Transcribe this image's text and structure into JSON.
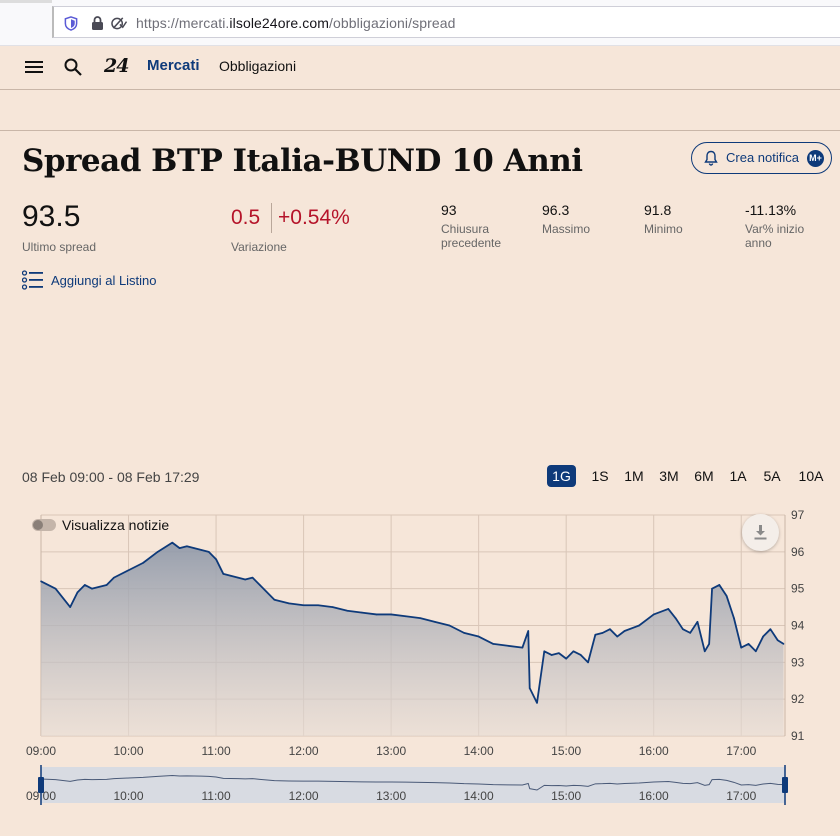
{
  "browser": {
    "url_prefix": "https://mercati.",
    "url_domain": "ilsole24ore.com",
    "url_path": "/obbligazioni/spread"
  },
  "nav": {
    "logo": "24",
    "mercati": "Mercati",
    "obbligazioni": "Obbligazioni"
  },
  "header": {
    "title": "Spread BTP Italia-BUND 10 Anni",
    "notify_label": "Crea notifica",
    "notify_badge": "M+"
  },
  "quote": {
    "last": "93.5",
    "last_label": "Ultimo spread",
    "change": "0.5",
    "change_pct": "+0.54%",
    "change_label": "Variazione",
    "prev_close": "93",
    "prev_close_label_1": "Chiusura",
    "prev_close_label_2": "precedente",
    "high": "96.3",
    "high_label": "Massimo",
    "low": "91.8",
    "low_label": "Minimo",
    "ytd": "-11.13%",
    "ytd_label_1": "Var% inizio",
    "ytd_label_2": "anno"
  },
  "watchlist_label": "Aggiungi al Listino",
  "chart_controls": {
    "range_text": "08 Feb 09:00 - 08 Feb 17:29",
    "periods": [
      "1G",
      "1S",
      "1M",
      "3M",
      "6M",
      "1A",
      "5A",
      "10A"
    ],
    "active_period": "1G",
    "news_toggle_label": "Visualizza notizie",
    "news_toggle_on": false
  },
  "colors": {
    "background": "#f6e6d9",
    "accent": "#0e3a7a",
    "negative": "#b5142a",
    "line": "#0e3a7a"
  },
  "chart_data": {
    "type": "area",
    "title": "",
    "xlabel": "",
    "ylabel": "",
    "xlim": [
      "09:00",
      "17:30"
    ],
    "ylim": [
      91,
      97
    ],
    "x_ticks": [
      "09:00",
      "10:00",
      "11:00",
      "12:00",
      "13:00",
      "14:00",
      "15:00",
      "16:00",
      "17:00"
    ],
    "y_ticks": [
      91,
      92,
      93,
      94,
      95,
      96,
      97
    ],
    "y_axis_side": "right",
    "grid": true,
    "series": [
      {
        "x": [
          "09:00",
          "09:10",
          "09:20",
          "09:25",
          "09:30",
          "09:35",
          "09:45",
          "09:50",
          "10:00",
          "10:10",
          "10:20",
          "10:30",
          "10:35",
          "10:40",
          "10:45",
          "10:50",
          "10:55",
          "11:00",
          "11:05",
          "11:10",
          "11:15",
          "11:20",
          "11:25",
          "11:30",
          "11:40",
          "11:50",
          "12:00",
          "12:10",
          "12:20",
          "12:30",
          "12:40",
          "12:50",
          "13:00",
          "13:10",
          "13:20",
          "13:30",
          "13:40",
          "13:50",
          "14:00",
          "14:10",
          "14:20",
          "14:30",
          "14:34",
          "14:35",
          "14:40",
          "14:45",
          "14:50",
          "14:55",
          "15:00",
          "15:05",
          "15:10",
          "15:15",
          "15:20",
          "15:25",
          "15:30",
          "15:35",
          "15:40",
          "15:50",
          "16:00",
          "16:10",
          "16:15",
          "16:20",
          "16:25",
          "16:30",
          "16:35",
          "16:38",
          "16:40",
          "16:45",
          "16:50",
          "16:55",
          "17:00",
          "17:05",
          "17:10",
          "17:15",
          "17:20",
          "17:25",
          "17:29"
        ],
        "values": [
          95.2,
          95.0,
          94.5,
          94.9,
          95.1,
          95.0,
          95.1,
          95.3,
          95.5,
          95.7,
          96.0,
          96.25,
          96.1,
          96.15,
          96.1,
          96.05,
          96.0,
          95.8,
          95.4,
          95.35,
          95.3,
          95.25,
          95.3,
          95.1,
          94.7,
          94.6,
          94.55,
          94.55,
          94.5,
          94.4,
          94.35,
          94.3,
          94.3,
          94.25,
          94.2,
          94.1,
          94.0,
          93.8,
          93.7,
          93.5,
          93.45,
          93.4,
          93.85,
          92.3,
          91.9,
          93.3,
          93.2,
          93.25,
          93.1,
          93.3,
          93.2,
          93.0,
          93.75,
          93.8,
          93.9,
          93.7,
          93.85,
          94.0,
          94.3,
          94.45,
          94.2,
          93.9,
          93.8,
          94.1,
          93.3,
          93.5,
          95.0,
          95.1,
          94.8,
          94.2,
          93.4,
          93.5,
          93.3,
          93.7,
          93.9,
          93.6,
          93.5
        ]
      }
    ],
    "navigator_ticks": [
      "09:00",
      "10:00",
      "11:00",
      "12:00",
      "13:00",
      "14:00",
      "15:00",
      "16:00",
      "17:00"
    ]
  }
}
